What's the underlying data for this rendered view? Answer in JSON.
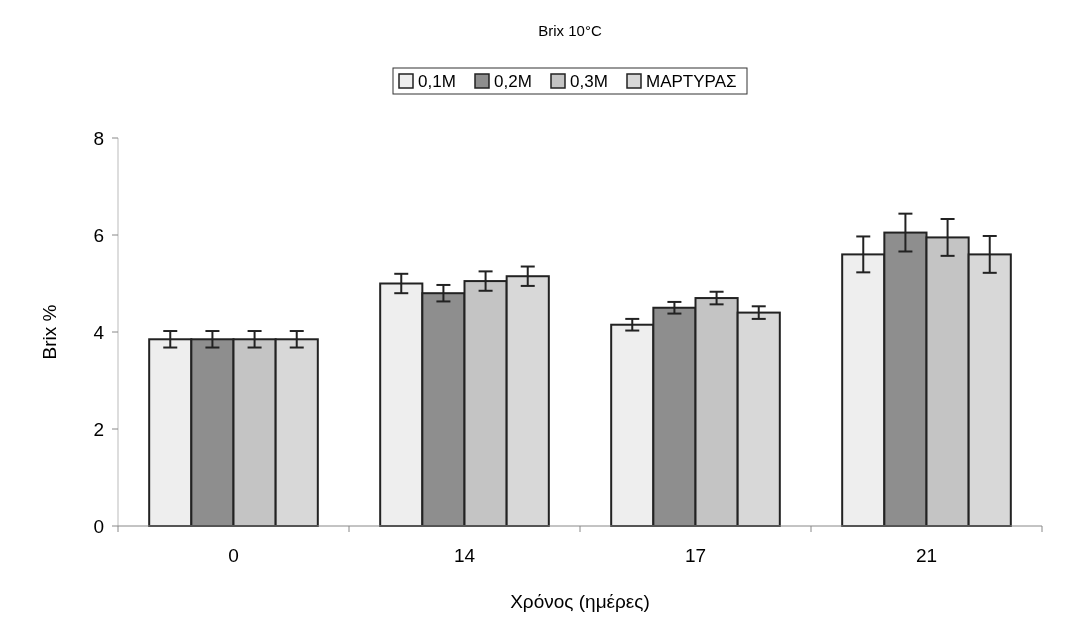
{
  "chart_data": {
    "type": "bar",
    "title": "Brix 10°C",
    "xlabel": "Χρόνος (ημέρες)",
    "ylabel": "Brix %",
    "categories": [
      "0",
      "14",
      "17",
      "21"
    ],
    "series": [
      {
        "name": "0,1M",
        "color": "#eeeeee",
        "values": [
          3.85,
          5.0,
          4.15,
          5.6
        ],
        "errors": [
          0.17,
          0.2,
          0.12,
          0.37
        ]
      },
      {
        "name": "0,2M",
        "color": "#8e8e8e",
        "values": [
          3.85,
          4.8,
          4.5,
          6.05
        ],
        "errors": [
          0.17,
          0.17,
          0.12,
          0.39
        ]
      },
      {
        "name": "0,3M",
        "color": "#c4c4c4",
        "values": [
          3.85,
          5.05,
          4.7,
          5.95
        ],
        "errors": [
          0.17,
          0.2,
          0.13,
          0.38
        ]
      },
      {
        "name": "ΜΑΡΤΥΡΑΣ",
        "color": "#d8d8d8",
        "values": [
          3.85,
          5.15,
          4.4,
          5.6
        ],
        "errors": [
          0.17,
          0.2,
          0.13,
          0.38
        ]
      }
    ],
    "ylim": [
      0,
      8
    ],
    "yticks": [
      0,
      2,
      4,
      6,
      8
    ],
    "grid": false,
    "legend": "top"
  }
}
